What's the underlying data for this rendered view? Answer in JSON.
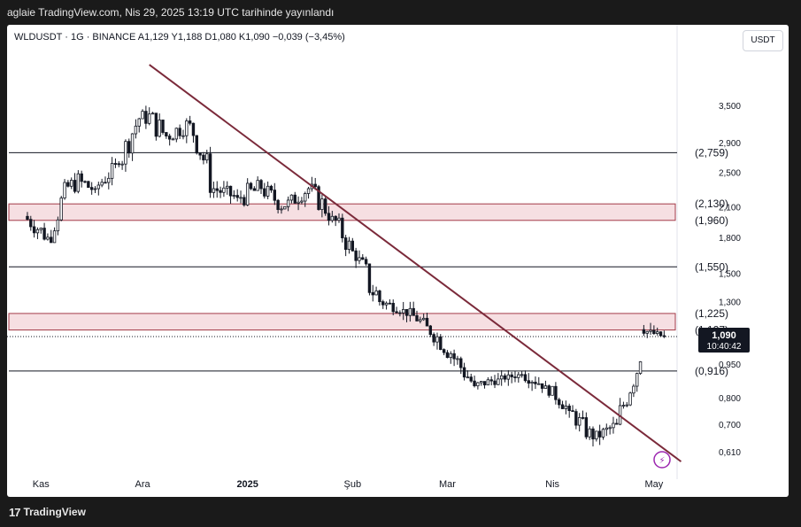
{
  "header": {
    "publish_text": "aglaie TradingView.com, Nis 29, 2025 13:19 UTC tarihinde yayınlandı"
  },
  "legend": {
    "symbol_line": "WLDUSDT · 1G · BINANCE  A1,129  Y1,188  D1,080  K1,090  −0,039 (−3,45%)"
  },
  "currency": "USDT",
  "footer": {
    "brand": "TradingView",
    "logo_mark": "17"
  },
  "colors": {
    "up": "#ffffff",
    "down": "#131722",
    "trendline": "#7b2a3a",
    "zone_fill": "#f6dfe2",
    "zone_border": "#a33a48",
    "hline": "#131722"
  },
  "chart_data": {
    "type": "candlestick",
    "symbol": "WLDUSDT",
    "interval": "1G",
    "exchange": "BINANCE",
    "scale": "log",
    "ylim": [
      0.55,
      4.6
    ],
    "y_ticks": [
      "3,500",
      "2,900",
      "2,500",
      "2,100",
      "1,800",
      "1,500",
      "1,300",
      "0,950",
      "0,800",
      "0,700",
      "0,610"
    ],
    "y_tick_values": [
      3.5,
      2.9,
      2.5,
      2.1,
      1.8,
      1.5,
      1.3,
      0.95,
      0.8,
      0.7,
      0.61
    ],
    "x_ticks": [
      "Kas",
      "Ara",
      "2025",
      "Şub",
      "Mar",
      "Nis",
      "May"
    ],
    "last_price": {
      "value": 1.09,
      "label": "1,090",
      "countdown": "10:40:42"
    },
    "horizontal_levels": [
      {
        "value": 2.759,
        "label": "(2,759)"
      },
      {
        "value": 1.55,
        "label": "(1,550)"
      },
      {
        "value": 0.916,
        "label": "(0,916)"
      }
    ],
    "zones": [
      {
        "high": 2.13,
        "low": 1.96,
        "label_high": "(2,130)",
        "label_low": "(1,960)"
      },
      {
        "high": 1.225,
        "low": 1.127,
        "label_high": "(1,225)",
        "label_low": "(1,127)"
      }
    ],
    "trendline": {
      "from": {
        "date": "2024-12-03",
        "value": 4.3
      },
      "to": {
        "date": "2025-05-09",
        "value": 0.58
      }
    },
    "candles_weekly_approx": [
      {
        "date": "2024-10-28",
        "o": 2.0,
        "h": 2.1,
        "l": 1.6,
        "c": 1.8
      },
      {
        "date": "2024-11-04",
        "o": 1.8,
        "h": 2.6,
        "l": 1.75,
        "c": 2.4
      },
      {
        "date": "2024-11-11",
        "o": 2.4,
        "h": 2.8,
        "l": 2.0,
        "c": 2.3
      },
      {
        "date": "2024-11-18",
        "o": 2.3,
        "h": 2.7,
        "l": 2.1,
        "c": 2.6
      },
      {
        "date": "2024-11-25",
        "o": 2.6,
        "h": 3.6,
        "l": 2.5,
        "c": 3.4
      },
      {
        "date": "2024-12-02",
        "o": 3.4,
        "h": 4.1,
        "l": 2.9,
        "c": 3.0
      },
      {
        "date": "2024-12-09",
        "o": 3.0,
        "h": 3.4,
        "l": 2.6,
        "c": 3.2
      },
      {
        "date": "2024-12-16",
        "o": 3.2,
        "h": 3.3,
        "l": 2.0,
        "c": 2.3
      },
      {
        "date": "2024-12-23",
        "o": 2.3,
        "h": 2.5,
        "l": 2.0,
        "c": 2.2
      },
      {
        "date": "2024-12-30",
        "o": 2.2,
        "h": 2.8,
        "l": 2.1,
        "c": 2.3
      },
      {
        "date": "2025-01-06",
        "o": 2.3,
        "h": 2.5,
        "l": 1.9,
        "c": 2.1
      },
      {
        "date": "2025-01-13",
        "o": 2.1,
        "h": 2.4,
        "l": 1.9,
        "c": 2.3
      },
      {
        "date": "2025-01-20",
        "o": 2.3,
        "h": 2.5,
        "l": 1.8,
        "c": 2.0
      },
      {
        "date": "2025-01-27",
        "o": 2.0,
        "h": 2.1,
        "l": 1.5,
        "c": 1.6
      },
      {
        "date": "2025-02-03",
        "o": 1.6,
        "h": 1.7,
        "l": 0.95,
        "c": 1.3
      },
      {
        "date": "2025-02-10",
        "o": 1.3,
        "h": 1.35,
        "l": 1.15,
        "c": 1.25
      },
      {
        "date": "2025-02-17",
        "o": 1.25,
        "h": 1.3,
        "l": 1.1,
        "c": 1.15
      },
      {
        "date": "2025-02-24",
        "o": 1.15,
        "h": 1.25,
        "l": 0.95,
        "c": 1.0
      },
      {
        "date": "2025-03-03",
        "o": 1.0,
        "h": 1.05,
        "l": 0.75,
        "c": 0.85
      },
      {
        "date": "2025-03-10",
        "o": 0.85,
        "h": 0.92,
        "l": 0.8,
        "c": 0.88
      },
      {
        "date": "2025-03-17",
        "o": 0.88,
        "h": 0.92,
        "l": 0.85,
        "c": 0.9
      },
      {
        "date": "2025-03-24",
        "o": 0.9,
        "h": 0.96,
        "l": 0.82,
        "c": 0.85
      },
      {
        "date": "2025-03-31",
        "o": 0.85,
        "h": 0.87,
        "l": 0.72,
        "c": 0.75
      },
      {
        "date": "2025-04-07",
        "o": 0.75,
        "h": 0.78,
        "l": 0.59,
        "c": 0.65
      },
      {
        "date": "2025-04-14",
        "o": 0.65,
        "h": 0.75,
        "l": 0.63,
        "c": 0.7
      },
      {
        "date": "2025-04-21",
        "o": 0.7,
        "h": 1.0,
        "l": 0.68,
        "c": 0.96
      },
      {
        "date": "2025-04-28",
        "o": 1.129,
        "h": 1.188,
        "l": 1.08,
        "c": 1.09
      }
    ]
  }
}
